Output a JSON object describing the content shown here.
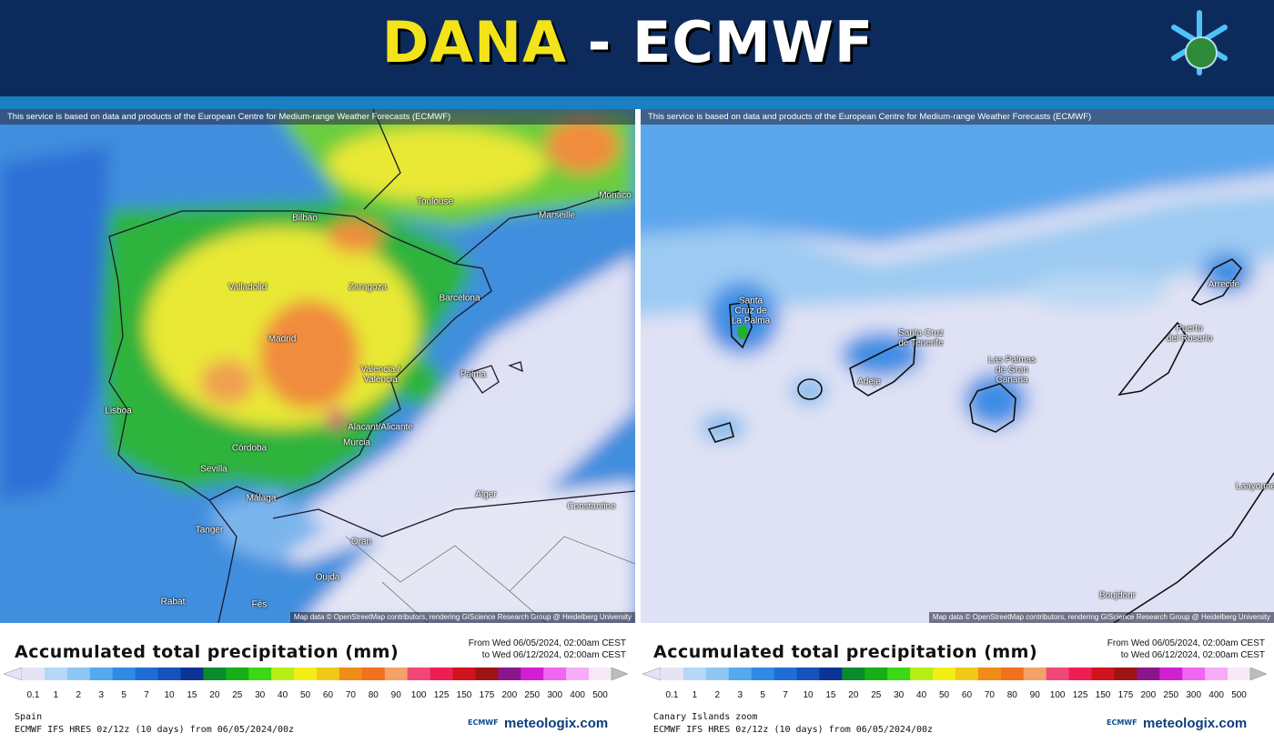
{
  "header": {
    "title_part1": "DANA",
    "separator": "-",
    "title_part2": "ECMWF"
  },
  "scale": {
    "labels": [
      "0.1",
      "1",
      "2",
      "3",
      "5",
      "7",
      "10",
      "15",
      "20",
      "25",
      "30",
      "40",
      "50",
      "60",
      "70",
      "80",
      "90",
      "100",
      "125",
      "150",
      "175",
      "200",
      "250",
      "300",
      "400",
      "500"
    ],
    "colors": [
      "#e4e4f4",
      "#b6d8f6",
      "#8ec6f4",
      "#55aaef",
      "#2f8ce4",
      "#1f6ed8",
      "#1552bd",
      "#0c3396",
      "#0a8a2a",
      "#16b016",
      "#3cd816",
      "#b6ee18",
      "#f2ee18",
      "#f0c818",
      "#f08c18",
      "#f2701e",
      "#f5a066",
      "#ef4878",
      "#ef1e52",
      "#d0141e",
      "#9e1414",
      "#8a168c",
      "#d21ed2",
      "#f066f0",
      "#f6acf6",
      "#f6e8f6"
    ]
  },
  "panels": [
    {
      "attribution": "This service is based on data and products of the European Centre for Medium-range Weather Forecasts (ECMWF)",
      "map_credit": "Map data © OpenStreetMap contributors, rendering GIScience Research Group @ Heidelberg University",
      "places": [
        "Toulouse",
        "Marseille",
        "Monaco",
        "Bilbao",
        "Zaragoza",
        "Barcelona",
        "Valladolid",
        "Madrid",
        "Valencia /\nValència",
        "Palma",
        "Lisboa",
        "Córdoba",
        "Alacant/Alicante",
        "Murcia",
        "Sevilla",
        "Málaga",
        "Alger",
        "Constantine",
        "Tanger",
        "Oran",
        "Oujda",
        "Rabat",
        "Fès"
      ],
      "legend_title": "Accumulated total precipitation (mm)",
      "from": "From Wed 06/05/2024, 02:00am CEST",
      "to": "to Wed 06/12/2024, 02:00am CEST",
      "region": "Spain",
      "model": "ECMWF IFS HRES 0z/12z (10 days) from 06/05/2024/00z",
      "logo_small": "ECMWF",
      "logo": "meteologix.com"
    },
    {
      "attribution": "This service is based on data and products of the European Centre for Medium-range Weather Forecasts (ECMWF)",
      "map_credit": "Map data © OpenStreetMap contributors, rendering GIScience Research Group @ Heidelberg University",
      "places": [
        "Santa\nCruz de\nLa Palma",
        "Santa Cruz\nde Tenerife",
        "Adeje",
        "Las Palmas\nde Gran\nCanaria",
        "Puerto\ndel Rosario",
        "Arrecife",
        "Laayoune",
        "Boujdour"
      ],
      "legend_title": "Accumulated total precipitation (mm)",
      "from": "From Wed 06/05/2024, 02:00am CEST",
      "to": "to Wed 06/12/2024, 02:00am CEST",
      "region": "Canary Islands zoom",
      "model": "ECMWF IFS HRES 0z/12z (10 days) from 06/05/2024/00z",
      "logo_small": "ECMWF",
      "logo": "meteologix.com"
    }
  ]
}
